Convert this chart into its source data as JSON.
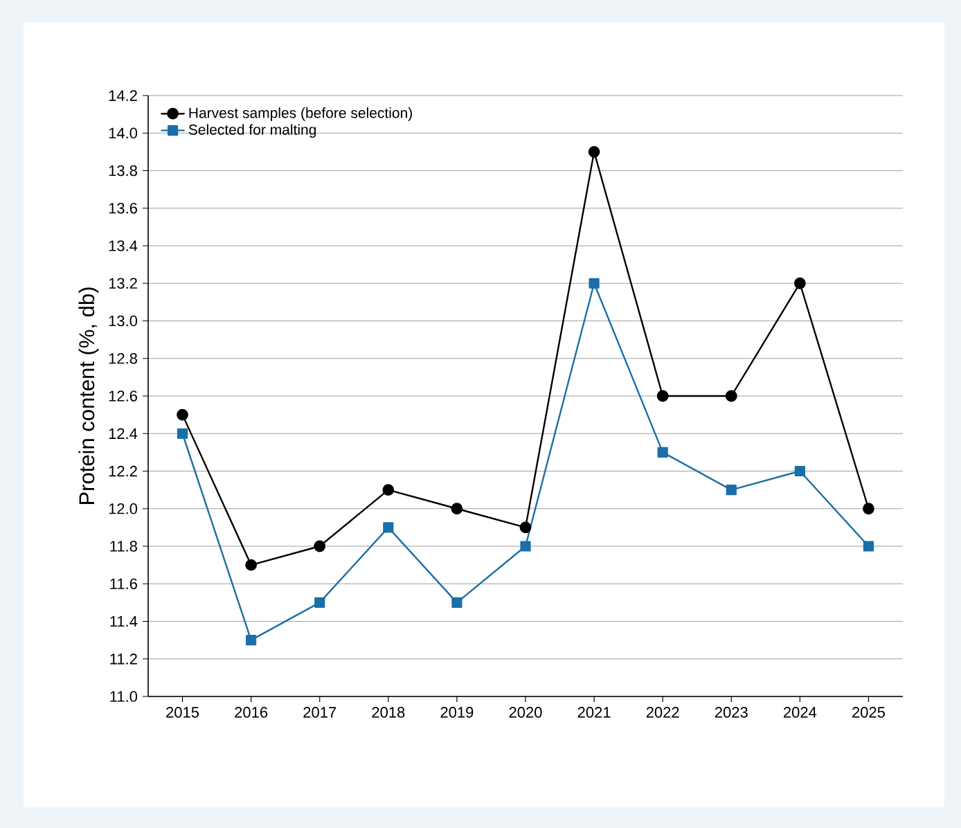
{
  "chart_data": {
    "type": "line",
    "ylabel": "Protein content (%, db)",
    "categories": [
      "2015",
      "2016",
      "2017",
      "2018",
      "2019",
      "2020",
      "2021",
      "2022",
      "2023",
      "2024",
      "2025"
    ],
    "series": [
      {
        "name": "Harvest samples (before selection)",
        "color": "#000000",
        "marker": "circle",
        "values": [
          12.5,
          11.7,
          11.8,
          12.1,
          12.0,
          11.9,
          13.9,
          12.6,
          12.6,
          13.2,
          12.0
        ]
      },
      {
        "name": "Selected for malting",
        "color": "#1a6fa8",
        "marker": "square",
        "values": [
          12.4,
          11.3,
          11.5,
          11.9,
          11.5,
          11.8,
          13.2,
          12.3,
          12.1,
          12.2,
          11.8
        ]
      }
    ],
    "ylim": [
      11.0,
      14.2
    ],
    "yticks": [
      {
        "value": 11.0,
        "label": "11.0"
      },
      {
        "value": 11.2,
        "label": "11.2"
      },
      {
        "value": 11.4,
        "label": "11.4"
      },
      {
        "value": 11.6,
        "label": "11.6"
      },
      {
        "value": 11.8,
        "label": "11.8"
      },
      {
        "value": 12.0,
        "label": "12.0"
      },
      {
        "value": 12.2,
        "label": "12.2"
      },
      {
        "value": 12.4,
        "label": "12.4"
      },
      {
        "value": 12.6,
        "label": "12.6"
      },
      {
        "value": 12.8,
        "label": "12.8"
      },
      {
        "value": 13.0,
        "label": "13.0"
      },
      {
        "value": 13.2,
        "label": "13.2"
      },
      {
        "value": 13.4,
        "label": "13.4"
      },
      {
        "value": 13.6,
        "label": "13.6"
      },
      {
        "value": 13.8,
        "label": "13.8"
      },
      {
        "value": 14.0,
        "label": "14.0"
      },
      {
        "value": 14.2,
        "label": "14.2"
      }
    ],
    "grid": "y",
    "legend": "top left",
    "line_style": "solid"
  }
}
